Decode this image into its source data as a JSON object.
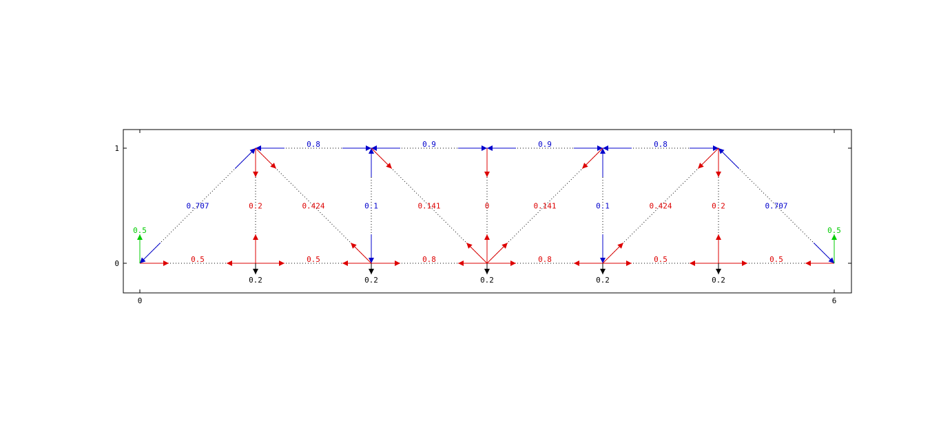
{
  "figure": {
    "axes": {
      "x_ticks": [
        "0",
        "6"
      ],
      "y_ticks": [
        "0",
        "1"
      ],
      "xlim": [
        -0.14,
        6.16
      ],
      "ylim": [
        -0.26,
        1.16
      ]
    },
    "colors": {
      "compression": "#0000cc",
      "tension": "#dd0000",
      "load": "#000000",
      "reaction": "#00cc00",
      "axis": "#000000",
      "member_line": "#000000"
    },
    "nodes": [
      {
        "id": "A0",
        "x": 0,
        "y": 0
      },
      {
        "id": "A1",
        "x": 1,
        "y": 0
      },
      {
        "id": "A2",
        "x": 2,
        "y": 0
      },
      {
        "id": "A3",
        "x": 3,
        "y": 0
      },
      {
        "id": "A4",
        "x": 4,
        "y": 0
      },
      {
        "id": "A5",
        "x": 5,
        "y": 0
      },
      {
        "id": "A6",
        "x": 6,
        "y": 0
      },
      {
        "id": "B1",
        "x": 1,
        "y": 1
      },
      {
        "id": "B2",
        "x": 2,
        "y": 1
      },
      {
        "id": "B3",
        "x": 3,
        "y": 1
      },
      {
        "id": "B4",
        "x": 4,
        "y": 1
      },
      {
        "id": "B5",
        "x": 5,
        "y": 1
      }
    ],
    "members": [
      {
        "from": "A0",
        "to": "A1",
        "force": "0.5",
        "type": "tension"
      },
      {
        "from": "A1",
        "to": "A2",
        "force": "0.5",
        "type": "tension"
      },
      {
        "from": "A2",
        "to": "A3",
        "force": "0.8",
        "type": "tension"
      },
      {
        "from": "A3",
        "to": "A4",
        "force": "0.8",
        "type": "tension"
      },
      {
        "from": "A4",
        "to": "A5",
        "force": "0.5",
        "type": "tension"
      },
      {
        "from": "A5",
        "to": "A6",
        "force": "0.5",
        "type": "tension"
      },
      {
        "from": "B1",
        "to": "B2",
        "force": "0.8",
        "type": "compression"
      },
      {
        "from": "B2",
        "to": "B3",
        "force": "0.9",
        "type": "compression"
      },
      {
        "from": "B3",
        "to": "B4",
        "force": "0.9",
        "type": "compression"
      },
      {
        "from": "B4",
        "to": "B5",
        "force": "0.8",
        "type": "compression"
      },
      {
        "from": "A0",
        "to": "B1",
        "force": "0.707",
        "type": "compression"
      },
      {
        "from": "A6",
        "to": "B5",
        "force": "0.707",
        "type": "compression"
      },
      {
        "from": "A1",
        "to": "B1",
        "force": "0.2",
        "type": "tension"
      },
      {
        "from": "A5",
        "to": "B5",
        "force": "0.2",
        "type": "tension"
      },
      {
        "from": "A2",
        "to": "B2",
        "force": "0.1",
        "type": "compression"
      },
      {
        "from": "A4",
        "to": "B4",
        "force": "0.1",
        "type": "compression"
      },
      {
        "from": "A3",
        "to": "B3",
        "force": "0",
        "type": "tension"
      },
      {
        "from": "B1",
        "to": "A2",
        "force": "0.424",
        "type": "tension"
      },
      {
        "from": "B5",
        "to": "A4",
        "force": "0.424",
        "type": "tension"
      },
      {
        "from": "B2",
        "to": "A3",
        "force": "0.141",
        "type": "tension"
      },
      {
        "from": "B4",
        "to": "A3",
        "force": "0.141",
        "type": "tension"
      }
    ],
    "loads": [
      {
        "node": "A1",
        "value": "0.2"
      },
      {
        "node": "A2",
        "value": "0.2"
      },
      {
        "node": "A3",
        "value": "0.2"
      },
      {
        "node": "A4",
        "value": "0.2"
      },
      {
        "node": "A5",
        "value": "0.2"
      }
    ],
    "reactions": [
      {
        "node": "A0",
        "value": "0.5"
      },
      {
        "node": "A6",
        "value": "0.5"
      }
    ]
  }
}
